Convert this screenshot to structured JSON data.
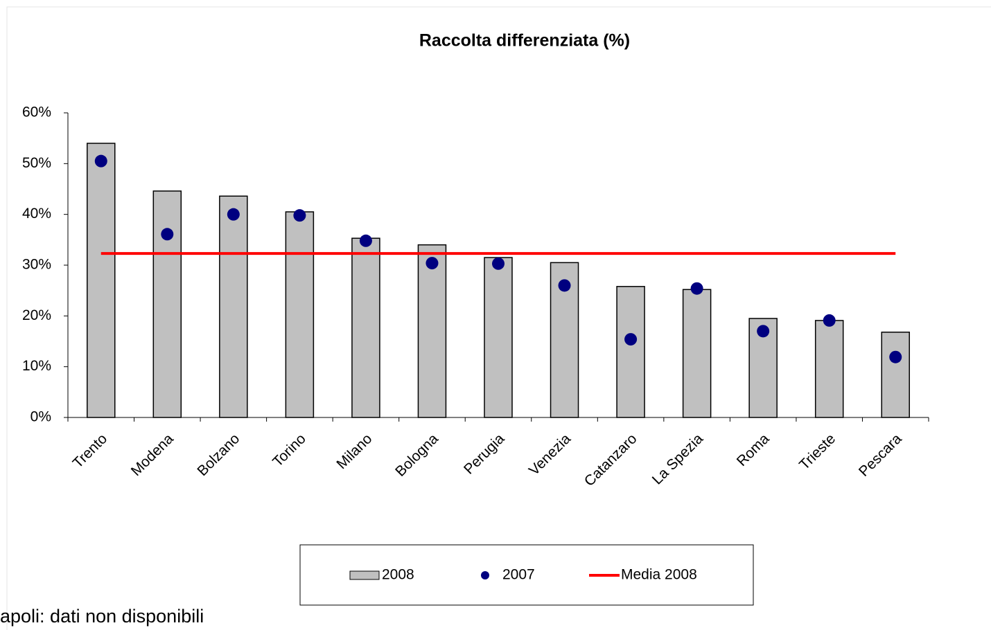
{
  "chart_data": {
    "type": "bar",
    "title": "Raccolta differenziata (%)",
    "categories": [
      "Trento",
      "Modena",
      "Bolzano",
      "Torino",
      "Milano",
      "Bologna",
      "Perugia",
      "Venezia",
      "Catanzaro",
      "La Spezia",
      "Roma",
      "Trieste",
      "Pescara"
    ],
    "series": [
      {
        "name": "2008",
        "type": "bar",
        "color": "#c0c0c0",
        "values": [
          54.0,
          44.6,
          43.6,
          40.5,
          35.3,
          34.0,
          31.5,
          30.5,
          25.8,
          25.2,
          19.5,
          19.1,
          16.8
        ]
      },
      {
        "name": "2007",
        "type": "dot",
        "color": "#000080",
        "values": [
          50.5,
          36.1,
          40.0,
          39.8,
          34.8,
          30.4,
          30.3,
          26.0,
          15.4,
          25.4,
          17.0,
          19.1,
          11.9
        ]
      },
      {
        "name": "Media 2008",
        "type": "line",
        "color": "#ff0000",
        "values": [
          32.3,
          32.3,
          32.3,
          32.3,
          32.3,
          32.3,
          32.3,
          32.3,
          32.3,
          32.3,
          32.3,
          32.3,
          32.3
        ]
      }
    ],
    "ylim": [
      0,
      60
    ],
    "yticks": [
      {
        "value": 0,
        "label": "0%"
      },
      {
        "value": 10,
        "label": "10%"
      },
      {
        "value": 20,
        "label": "20%"
      },
      {
        "value": 30,
        "label": "30%"
      },
      {
        "value": 40,
        "label": "40%"
      },
      {
        "value": 50,
        "label": "50%"
      },
      {
        "value": 60,
        "label": "60%"
      }
    ],
    "grid": false,
    "legend": "bottom",
    "note": "apoli: dati non disponibili"
  }
}
